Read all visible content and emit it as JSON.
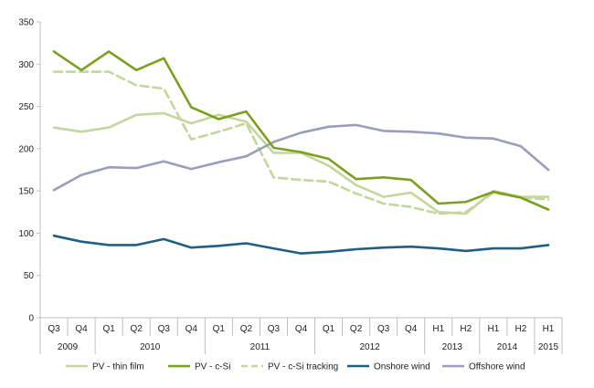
{
  "chart_data": {
    "type": "line",
    "title": "",
    "xlabel": "",
    "ylabel": "",
    "ylim": [
      0,
      350
    ],
    "yticks": [
      0,
      50,
      100,
      150,
      200,
      250,
      300,
      350
    ],
    "categories": [
      "Q3",
      "Q4",
      "Q1",
      "Q2",
      "Q3",
      "Q4",
      "Q1",
      "Q2",
      "Q3",
      "Q4",
      "Q1",
      "Q2",
      "Q3",
      "Q4",
      "H1",
      "H2",
      "H1",
      "H2",
      "H1"
    ],
    "year_groups": [
      {
        "label": "2009",
        "span": 2
      },
      {
        "label": "2010",
        "span": 4
      },
      {
        "label": "2011",
        "span": 4
      },
      {
        "label": "2012",
        "span": 4
      },
      {
        "label": "2013",
        "span": 2
      },
      {
        "label": "2014",
        "span": 2
      },
      {
        "label": "2015",
        "span": 1
      }
    ],
    "grid": false,
    "legend_position": "bottom",
    "series": [
      {
        "name": "PV - thin film",
        "color": "#c3d69b",
        "style": "solid",
        "values": [
          225,
          220,
          225,
          240,
          242,
          230,
          240,
          232,
          195,
          195,
          180,
          157,
          143,
          148,
          125,
          123,
          150,
          143,
          143
        ]
      },
      {
        "name": "PV - c-Si",
        "color": "#7aa020",
        "style": "solid",
        "values": [
          315,
          293,
          315,
          293,
          307,
          249,
          235,
          244,
          201,
          196,
          188,
          164,
          166,
          163,
          135,
          137,
          149,
          142,
          128
        ]
      },
      {
        "name": "PV - c-Si tracking",
        "color": "#c3d69b",
        "style": "dashed",
        "values": [
          291,
          291,
          291,
          275,
          271,
          211,
          220,
          230,
          166,
          163,
          161,
          147,
          135,
          131,
          123,
          125,
          148,
          142,
          140
        ]
      },
      {
        "name": "Onshore wind",
        "color": "#1f5f86",
        "style": "solid",
        "values": [
          97,
          90,
          86,
          86,
          93,
          83,
          85,
          88,
          82,
          76,
          78,
          81,
          83,
          84,
          82,
          79,
          82,
          82,
          86
        ]
      },
      {
        "name": "Offshore wind",
        "color": "#9c9cbd",
        "style": "solid",
        "values": [
          151,
          169,
          178,
          177,
          185,
          176,
          184,
          191,
          208,
          219,
          226,
          228,
          221,
          220,
          218,
          213,
          212,
          203,
          175
        ]
      }
    ]
  }
}
